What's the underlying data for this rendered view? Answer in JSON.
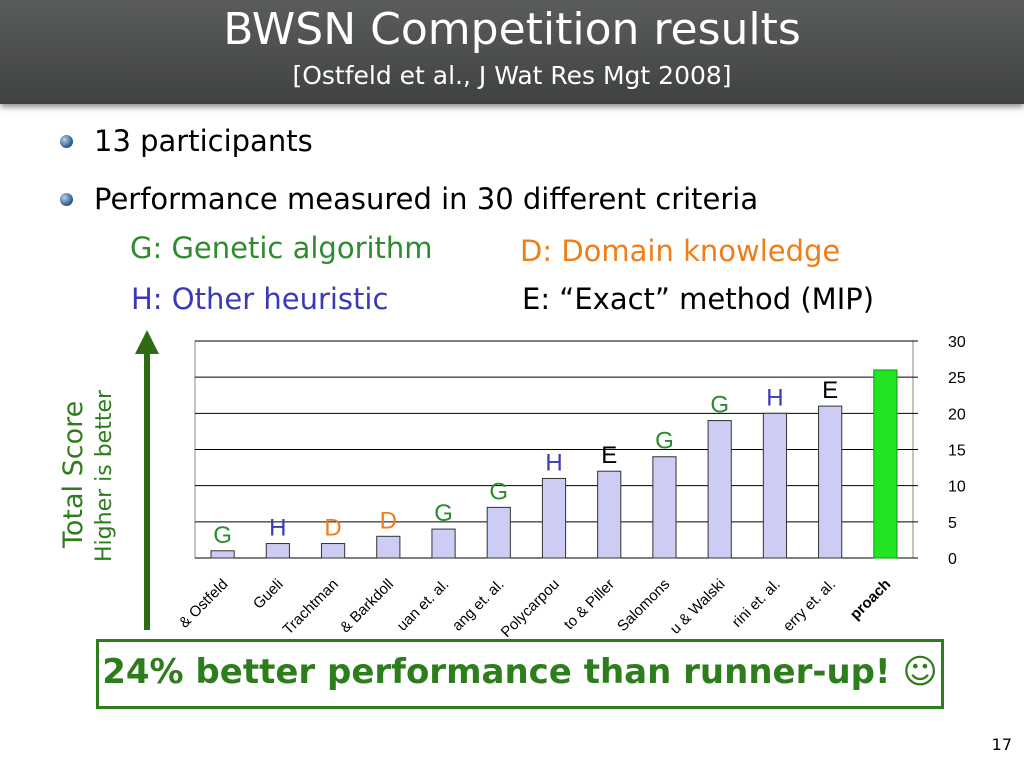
{
  "slide": {
    "title": "BWSN Competition results",
    "subtitle": "[Ostfeld et al., J Wat Res Mgt 2008]",
    "bullets": [
      "13 participants",
      "Performance measured in 30 different criteria"
    ],
    "legend": [
      {
        "code": "G",
        "text": "G: Genetic algorithm",
        "color": "#2e8b2e"
      },
      {
        "code": "D",
        "text": "D: Domain knowledge",
        "color": "#f07d18"
      },
      {
        "code": "H",
        "text": "H: Other heuristic",
        "color": "#3a3ab8"
      },
      {
        "code": "E",
        "text": "E: “Exact” method (MIP)",
        "color": "#000000"
      }
    ],
    "y_axis_label": "Total Score",
    "y_axis_sublabel": "Higher is better",
    "callout": "24% better performance than runner-up! ☺",
    "page_number": "17"
  },
  "chart_data": {
    "type": "bar",
    "categories": [
      "& Ostfeld",
      "Gueli",
      "Trachtman",
      "& Barkdoll",
      "uan et. al.",
      "ang et. al.",
      "Polycarpou",
      "to & Piller",
      "Salomons",
      "u & Walski",
      "rini et. al.",
      "erry et. al.",
      "proach"
    ],
    "values": [
      1,
      2,
      2,
      3,
      4,
      7,
      11,
      12,
      14,
      19,
      20,
      21,
      26
    ],
    "method_labels": [
      "G",
      "H",
      "D",
      "D",
      "G",
      "G",
      "H",
      "E",
      "G",
      "G",
      "H",
      "E",
      ""
    ],
    "highlight_index": 12,
    "ylim": [
      0,
      30
    ],
    "yticks": [
      0,
      5,
      10,
      15,
      20,
      25,
      30
    ],
    "ytick_labels": [
      "0",
      "5",
      "10",
      "15",
      "20",
      "25",
      "30"
    ],
    "grid": true,
    "bar_color": "#ccccf4",
    "highlight_color": "#22e422"
  }
}
